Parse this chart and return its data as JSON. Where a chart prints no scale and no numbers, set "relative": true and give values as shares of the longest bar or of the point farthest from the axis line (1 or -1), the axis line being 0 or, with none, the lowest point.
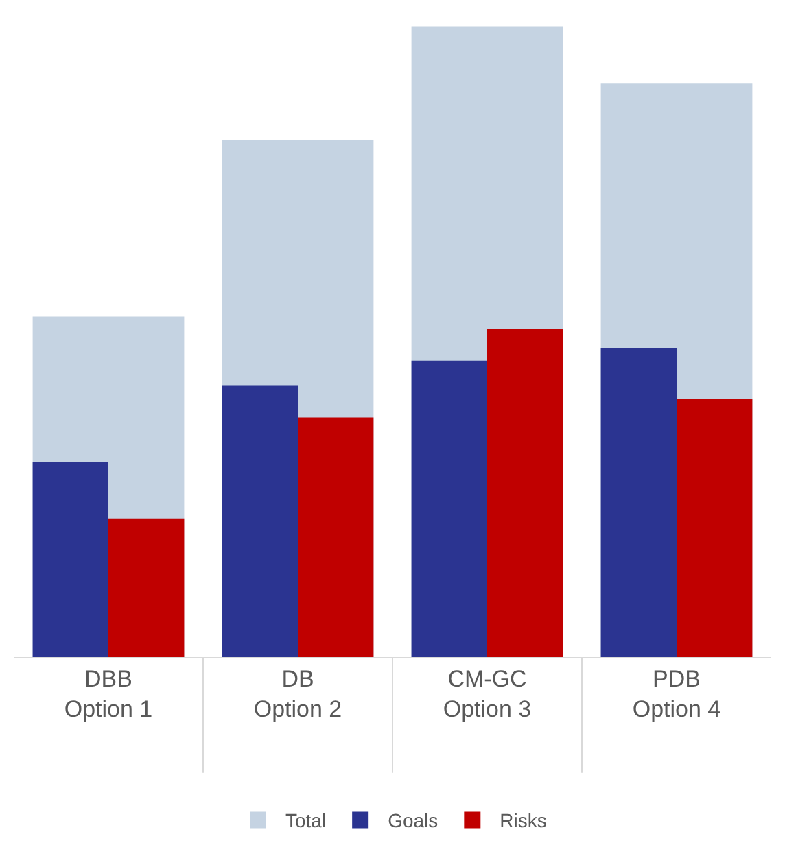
{
  "chart_data": {
    "type": "bar",
    "relative": true,
    "categories": [
      "DBB\nOption 1",
      "DB\nOption 2",
      "CM-GC\nOption 3",
      "PDB\nOption 4"
    ],
    "series": [
      {
        "name": "Total",
        "color": "#c5d3e2",
        "values": [
          0.54,
          0.82,
          1,
          0.91
        ]
      },
      {
        "name": "Goals",
        "color": "#2b3491",
        "values": [
          0.31,
          0.43,
          0.47,
          0.49
        ]
      },
      {
        "name": "Risks",
        "color": "#c00000",
        "values": [
          0.22,
          0.38,
          0.52,
          0.41
        ]
      }
    ],
    "legend": "bottom",
    "grid": false
  }
}
